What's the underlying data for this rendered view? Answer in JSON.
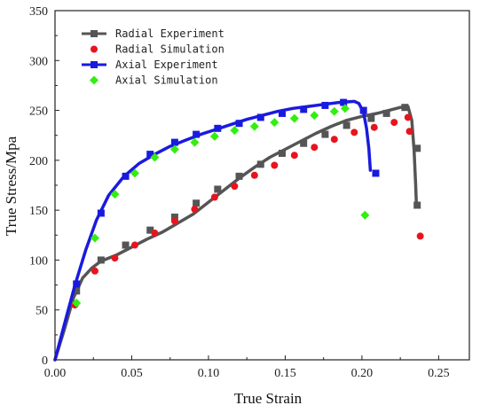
{
  "chart_data": {
    "type": "line",
    "xlabel": "True Strain",
    "ylabel": "True Stress/Mpa",
    "xlim": [
      0,
      0.27
    ],
    "ylim": [
      0,
      350
    ],
    "xticks": [
      0.0,
      0.05,
      0.1,
      0.15,
      0.2,
      0.25
    ],
    "xtick_labels": [
      "0.00",
      "0.05",
      "0.10",
      "0.15",
      "0.20",
      "0.25"
    ],
    "yticks": [
      0,
      50,
      100,
      150,
      200,
      250,
      300,
      350
    ],
    "ytick_labels": [
      "0",
      "50",
      "100",
      "150",
      "200",
      "250",
      "300",
      "350"
    ],
    "grid": false,
    "legend_position": "top-left",
    "series": [
      {
        "name": "Radial Experiment",
        "kind": "line-marker",
        "marker": "square",
        "color": "#555555",
        "line": [
          [
            0.0,
            0
          ],
          [
            0.006,
            30
          ],
          [
            0.012,
            62
          ],
          [
            0.018,
            82
          ],
          [
            0.024,
            92
          ],
          [
            0.03,
            99
          ],
          [
            0.04,
            105
          ],
          [
            0.05,
            113
          ],
          [
            0.06,
            121
          ],
          [
            0.07,
            128
          ],
          [
            0.08,
            137
          ],
          [
            0.09,
            146
          ],
          [
            0.1,
            158
          ],
          [
            0.11,
            170
          ],
          [
            0.12,
            182
          ],
          [
            0.13,
            193
          ],
          [
            0.14,
            203
          ],
          [
            0.15,
            211
          ],
          [
            0.16,
            219
          ],
          [
            0.17,
            227
          ],
          [
            0.18,
            234
          ],
          [
            0.19,
            240
          ],
          [
            0.2,
            244
          ],
          [
            0.21,
            247
          ],
          [
            0.22,
            251
          ],
          [
            0.225,
            253
          ],
          [
            0.23,
            254
          ],
          [
            0.2325,
            240
          ],
          [
            0.234,
            210
          ],
          [
            0.235,
            175
          ],
          [
            0.2355,
            155
          ]
        ],
        "points": [
          [
            0.014,
            69
          ],
          [
            0.03,
            100
          ],
          [
            0.046,
            115
          ],
          [
            0.062,
            130
          ],
          [
            0.078,
            143
          ],
          [
            0.092,
            157
          ],
          [
            0.106,
            171
          ],
          [
            0.12,
            184
          ],
          [
            0.134,
            196
          ],
          [
            0.148,
            207
          ],
          [
            0.162,
            217
          ],
          [
            0.176,
            226
          ],
          [
            0.19,
            235
          ],
          [
            0.206,
            242
          ],
          [
            0.216,
            247
          ],
          [
            0.228,
            253
          ],
          [
            0.236,
            212
          ],
          [
            0.236,
            155
          ]
        ]
      },
      {
        "name": "Radial Simulation",
        "kind": "scatter",
        "marker": "circle",
        "color": "#e8141d",
        "points": [
          [
            0.013,
            55
          ],
          [
            0.026,
            89
          ],
          [
            0.039,
            102
          ],
          [
            0.052,
            115
          ],
          [
            0.065,
            127
          ],
          [
            0.078,
            139
          ],
          [
            0.091,
            151
          ],
          [
            0.104,
            163
          ],
          [
            0.117,
            174
          ],
          [
            0.13,
            185
          ],
          [
            0.143,
            195
          ],
          [
            0.156,
            205
          ],
          [
            0.169,
            213
          ],
          [
            0.182,
            221
          ],
          [
            0.195,
            228
          ],
          [
            0.208,
            233
          ],
          [
            0.221,
            238
          ],
          [
            0.23,
            243
          ],
          [
            0.231,
            229
          ],
          [
            0.238,
            124
          ]
        ]
      },
      {
        "name": "Axial Experiment",
        "kind": "line-marker",
        "marker": "square",
        "color": "#1a1adf",
        "line": [
          [
            0.0,
            0
          ],
          [
            0.006,
            35
          ],
          [
            0.013,
            75
          ],
          [
            0.02,
            110
          ],
          [
            0.027,
            140
          ],
          [
            0.035,
            165
          ],
          [
            0.045,
            184
          ],
          [
            0.055,
            197
          ],
          [
            0.065,
            206
          ],
          [
            0.075,
            214
          ],
          [
            0.085,
            220
          ],
          [
            0.095,
            226
          ],
          [
            0.105,
            231
          ],
          [
            0.115,
            236
          ],
          [
            0.125,
            241
          ],
          [
            0.135,
            245
          ],
          [
            0.145,
            249
          ],
          [
            0.155,
            252
          ],
          [
            0.165,
            254
          ],
          [
            0.175,
            256
          ],
          [
            0.185,
            258
          ],
          [
            0.195,
            259
          ],
          [
            0.198,
            257
          ],
          [
            0.201,
            248
          ],
          [
            0.203,
            232
          ],
          [
            0.2045,
            212
          ],
          [
            0.2055,
            190
          ]
        ],
        "points": [
          [
            0.014,
            76
          ],
          [
            0.03,
            147
          ],
          [
            0.046,
            184
          ],
          [
            0.062,
            206
          ],
          [
            0.078,
            218
          ],
          [
            0.092,
            226
          ],
          [
            0.106,
            232
          ],
          [
            0.12,
            237
          ],
          [
            0.134,
            243
          ],
          [
            0.148,
            247
          ],
          [
            0.162,
            251
          ],
          [
            0.176,
            255
          ],
          [
            0.188,
            258
          ],
          [
            0.201,
            250
          ],
          [
            0.209,
            187
          ]
        ]
      },
      {
        "name": "Axial Simulation",
        "kind": "scatter",
        "marker": "diamond",
        "color": "#33ee11",
        "points": [
          [
            0.014,
            57
          ],
          [
            0.026,
            122
          ],
          [
            0.039,
            166
          ],
          [
            0.052,
            187
          ],
          [
            0.065,
            203
          ],
          [
            0.078,
            211
          ],
          [
            0.091,
            218
          ],
          [
            0.104,
            224
          ],
          [
            0.117,
            230
          ],
          [
            0.13,
            234
          ],
          [
            0.143,
            238
          ],
          [
            0.156,
            242
          ],
          [
            0.169,
            245
          ],
          [
            0.182,
            249
          ],
          [
            0.189,
            252
          ],
          [
            0.202,
            145
          ]
        ]
      }
    ]
  }
}
